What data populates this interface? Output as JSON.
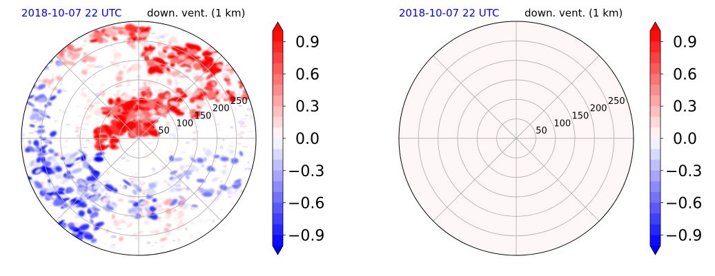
{
  "colors": {
    "positive": "#ff0000",
    "negative": "#0000ff",
    "neutral": "#ffffff",
    "title_date": "#0000ff",
    "grid": "#b0b0b0",
    "uniform_fill": "#fff0f0"
  },
  "chart_data": [
    {
      "type": "heatmap",
      "projection": "polar",
      "title_left": "2018-10-07 22 UTC",
      "title_right": "down. vent. (1 km)",
      "radial_ticks": [
        "50",
        "100",
        "150",
        "200",
        "250"
      ],
      "radial_values": [
        50,
        100,
        150,
        200,
        250
      ],
      "r_max": 300,
      "grid": true,
      "field": "structured",
      "colorbar": {
        "ticks": [
          "0.9",
          "0.6",
          "0.3",
          "0.0",
          "−0.3",
          "−0.6",
          "−0.9"
        ],
        "tick_values": [
          0.9,
          0.6,
          0.3,
          0.0,
          -0.3,
          -0.6,
          -0.9
        ],
        "vmin": -1.0,
        "vmax": 1.0,
        "extend": "both"
      }
    },
    {
      "type": "heatmap",
      "projection": "polar",
      "title_left": "2018-10-07 22 UTC",
      "title_right": "down. vent. (1 km)",
      "radial_ticks": [
        "50",
        "100",
        "150",
        "200",
        "250"
      ],
      "radial_values": [
        50,
        100,
        150,
        200,
        250
      ],
      "r_max": 300,
      "grid": true,
      "field": "uniform",
      "uniform_value": 0.03,
      "colorbar": {
        "ticks": [
          "0.9",
          "0.6",
          "0.3",
          "0.0",
          "−0.3",
          "−0.6",
          "−0.9"
        ],
        "tick_values": [
          0.9,
          0.6,
          0.3,
          0.0,
          -0.3,
          -0.6,
          -0.9
        ],
        "vmin": -1.0,
        "vmax": 1.0,
        "extend": "both"
      }
    }
  ]
}
